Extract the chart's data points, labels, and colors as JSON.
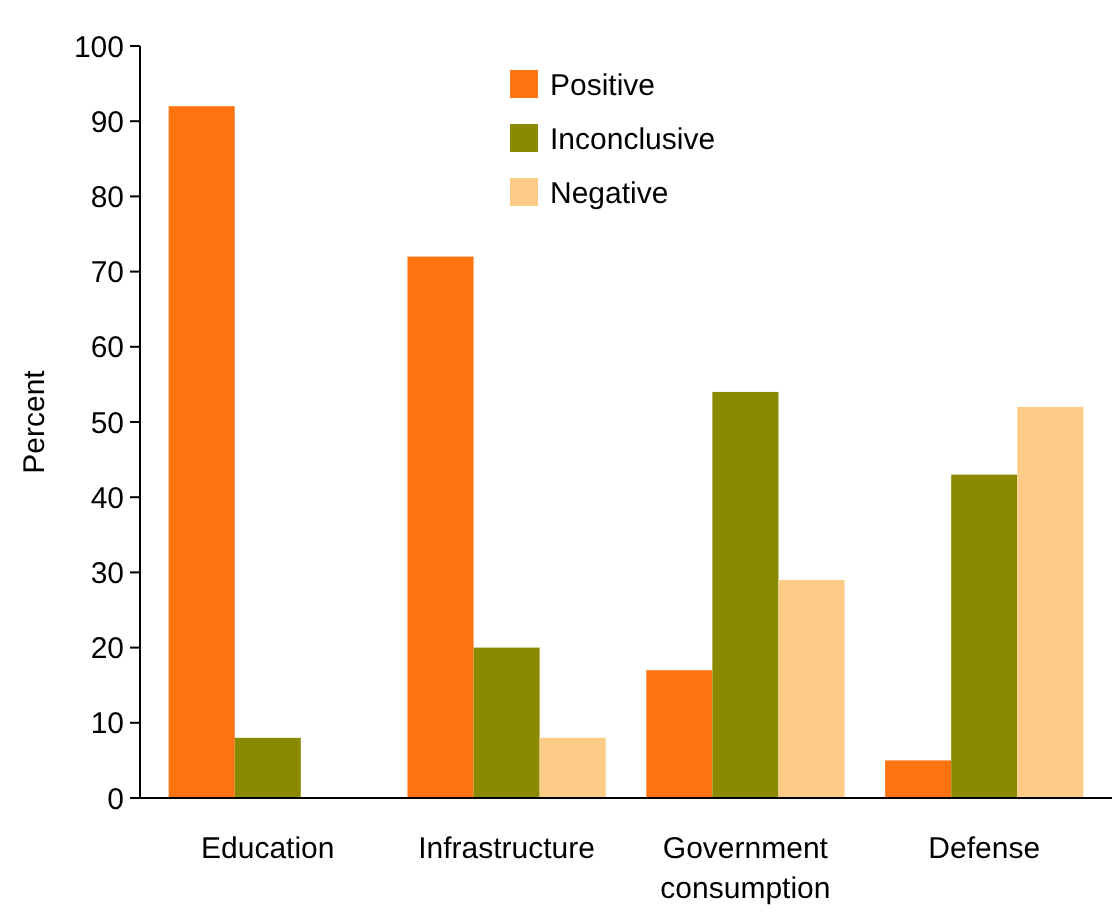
{
  "chart_data": {
    "type": "bar",
    "ylabel": "Percent",
    "categories": [
      "Education",
      "Infrastructure",
      "Government consumption",
      "Defense"
    ],
    "series": [
      {
        "name": "Positive",
        "color": "#ff7311",
        "values": [
          92,
          72,
          17,
          5
        ]
      },
      {
        "name": "Inconclusive",
        "color": "#8a8a00",
        "values": [
          8,
          20,
          54,
          43
        ]
      },
      {
        "name": "Negative",
        "color": "#ffcc88",
        "values": [
          0,
          8,
          29,
          52
        ]
      }
    ],
    "ylim": [
      0,
      100
    ],
    "yticks": [
      0,
      10,
      20,
      30,
      40,
      50,
      60,
      70,
      80,
      90,
      100
    ],
    "grid": false,
    "legend": "top"
  }
}
